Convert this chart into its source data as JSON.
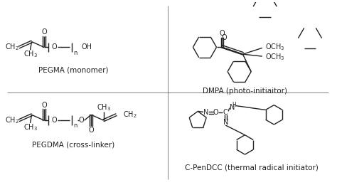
{
  "bg_color": "#ffffff",
  "line_color": "#222222",
  "text_color": "#222222",
  "labels": {
    "pegma": "PEGMA (monomer)",
    "pegdma": "PEGDMA (cross-linker)",
    "dmpa": "DMPA (photo-initiaitor)",
    "cpendcc": "C-PenDCC (thermal radical initiator)"
  }
}
